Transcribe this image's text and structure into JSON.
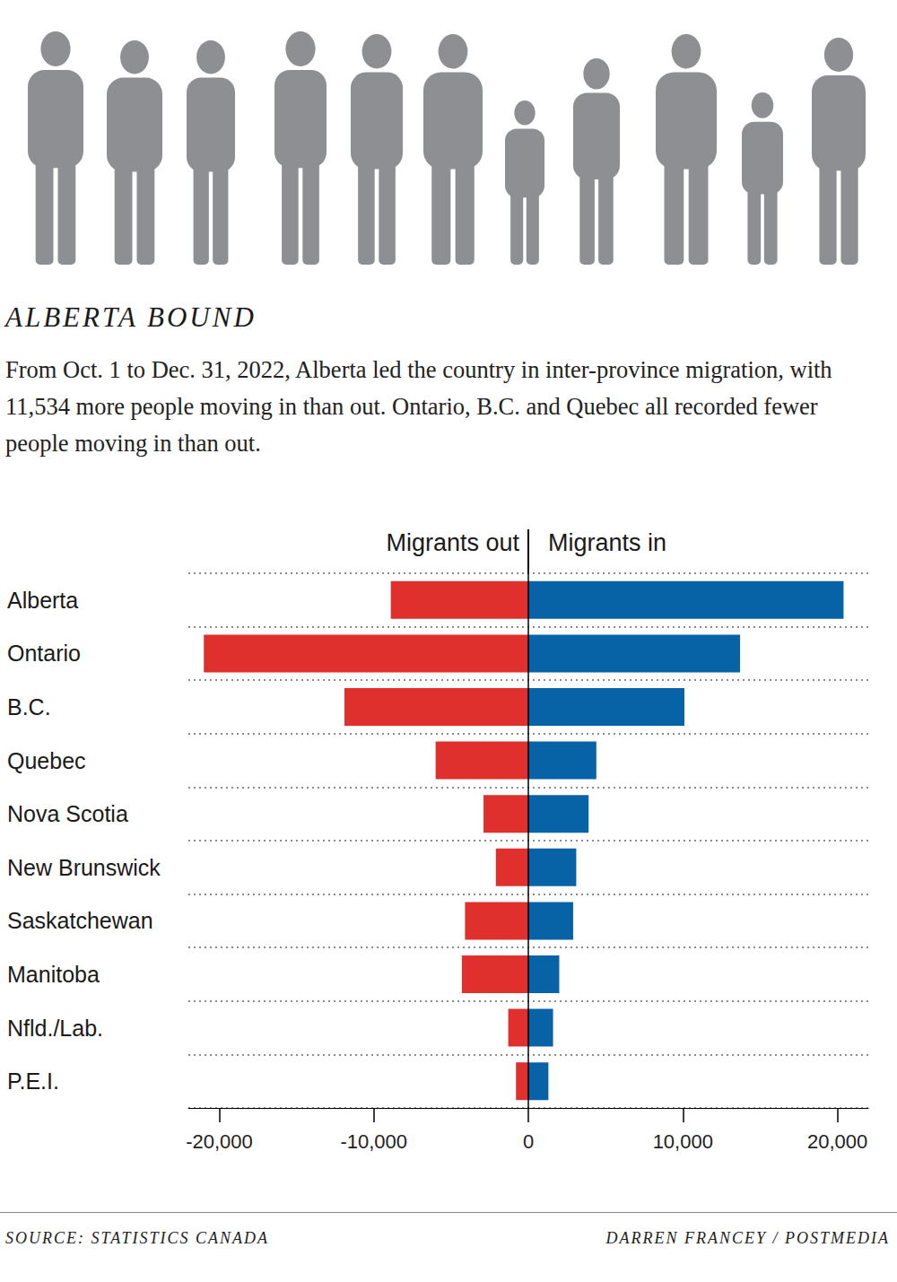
{
  "chart_data": {
    "type": "bar",
    "orientation": "horizontal",
    "stacked": true,
    "title": "ALBERTA BOUND",
    "subtitle": "From Oct. 1 to Dec. 31, 2022, Alberta led the country in inter-province migration, with 11,534 more people moving in than out. Ontario, B.C. and Quebec all recorded fewer people moving in than out.",
    "source": "SOURCE: STATISTICS CANADA",
    "credit": "DARREN FRANCEY / POSTMEDIA",
    "categories": [
      "Alberta",
      "Ontario",
      "B.C.",
      "Quebec",
      "Nova Scotia",
      "New Brunswick",
      "Saskatchewan",
      "Manitoba",
      "Nfld./Lab.",
      "P.E.I."
    ],
    "series": [
      {
        "name": "Migrants out",
        "color": "#e0302d",
        "values": [
          -8900,
          -21000,
          -11900,
          -6000,
          -2900,
          -2100,
          -4100,
          -4300,
          -1300,
          -800
        ]
      },
      {
        "name": "Migrants in",
        "color": "#0862a6",
        "values": [
          20400,
          13700,
          10100,
          4400,
          3900,
          3100,
          2900,
          2000,
          1600,
          1300
        ]
      }
    ],
    "xlim": [
      -22000,
      22000
    ],
    "xticks": [
      {
        "value": -20000,
        "label": "-20,000"
      },
      {
        "value": -10000,
        "label": "-10,000"
      },
      0,
      {
        "value": 10000,
        "label": "10,000"
      },
      {
        "value": 20000,
        "label": "20,000"
      }
    ]
  }
}
